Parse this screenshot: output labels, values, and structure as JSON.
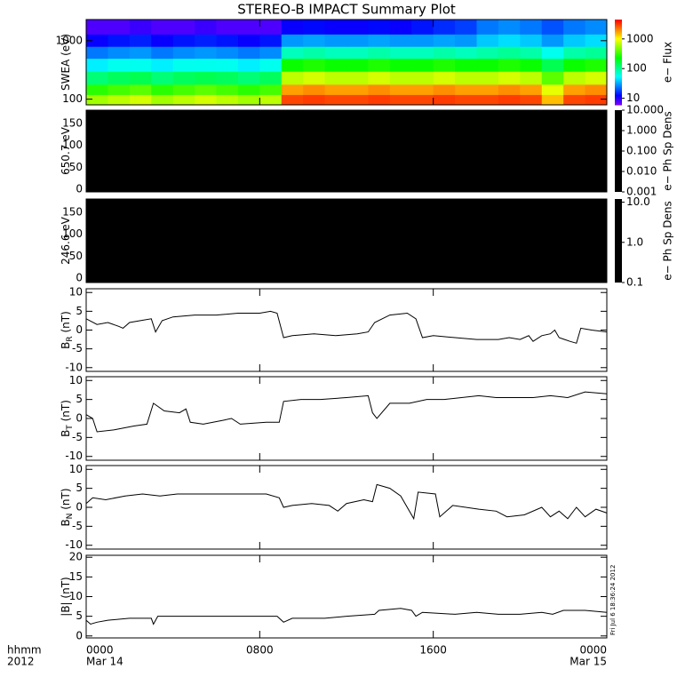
{
  "title": "STEREO-B IMPACT Summary Plot",
  "timestamp": "Fri Jul  6 18:36:24 2012",
  "x_axis": {
    "xlim": [
      0,
      24
    ],
    "xticks": [
      {
        "value": 0,
        "label": "0000"
      },
      {
        "value": 8,
        "label": "0800"
      },
      {
        "value": 16,
        "label": "1600"
      },
      {
        "value": 24,
        "label": "0000"
      }
    ],
    "date_labels": [
      "Mar 14",
      "Mar 15"
    ],
    "corner_labels": [
      "hhmm",
      "2012"
    ]
  },
  "chart_data": [
    {
      "type": "heatmap",
      "ylabel": "SWEA (eV)",
      "log": true,
      "ylim": [
        80,
        2300
      ],
      "yticks": [
        100,
        1000
      ],
      "zlabel": "e− Flux",
      "zlim": [
        6,
        4500
      ],
      "zticks": [
        10,
        100,
        1000
      ],
      "colormap": "rainbow",
      "x_bins": [
        0,
        1,
        2,
        3,
        4,
        5,
        6,
        7,
        8,
        9,
        10,
        11,
        12,
        13,
        14,
        15,
        16,
        17,
        18,
        19,
        20,
        21,
        22,
        23,
        24
      ],
      "y_bins": [
        80,
        120,
        180,
        300,
        500,
        800,
        1300,
        2300
      ],
      "z": [
        [
          600,
          700,
          800,
          600,
          700,
          800,
          700,
          600,
          700,
          3000,
          3200,
          3000,
          3000,
          3200,
          3000,
          3000,
          3200,
          3000,
          3000,
          3200,
          3000,
          1500,
          3000,
          3200
        ],
        [
          300,
          350,
          400,
          300,
          350,
          400,
          350,
          300,
          350,
          1800,
          2000,
          1800,
          1800,
          2000,
          1800,
          1800,
          2000,
          1800,
          1800,
          2000,
          1800,
          900,
          1800,
          2000
        ],
        [
          120,
          140,
          150,
          120,
          140,
          150,
          140,
          120,
          140,
          700,
          800,
          700,
          700,
          800,
          700,
          700,
          800,
          700,
          700,
          800,
          700,
          400,
          700,
          800
        ],
        [
          50,
          60,
          60,
          50,
          60,
          60,
          60,
          50,
          60,
          250,
          280,
          250,
          250,
          280,
          250,
          250,
          280,
          250,
          250,
          280,
          250,
          150,
          250,
          280
        ],
        [
          25,
          28,
          30,
          25,
          28,
          30,
          28,
          25,
          28,
          80,
          90,
          80,
          80,
          90,
          80,
          80,
          90,
          80,
          90,
          100,
          90,
          60,
          90,
          100
        ],
        [
          12,
          14,
          15,
          12,
          14,
          15,
          14,
          12,
          14,
          30,
          32,
          30,
          30,
          32,
          30,
          30,
          32,
          30,
          40,
          45,
          40,
          30,
          40,
          45
        ],
        [
          8,
          8,
          9,
          8,
          8,
          9,
          8,
          8,
          8,
          12,
          13,
          12,
          12,
          13,
          12,
          14,
          16,
          18,
          25,
          28,
          25,
          20,
          25,
          28
        ]
      ]
    },
    {
      "type": "image",
      "ylabel": "650.7 eV",
      "ylim": [
        -6,
        180
      ],
      "yticks": [
        0,
        50,
        100,
        150
      ],
      "fill": "#000000",
      "zlabel": "e− Ph Sp Dens",
      "zlog": true,
      "zlim": [
        0.001,
        10
      ],
      "zticks": [
        {
          "value": 10,
          "label": "10.000"
        },
        {
          "value": 1,
          "label": "1.000"
        },
        {
          "value": 0.1,
          "label": "0.100"
        },
        {
          "value": 0.01,
          "label": "0.010"
        },
        {
          "value": 0.001,
          "label": "0.001"
        }
      ]
    },
    {
      "type": "image",
      "ylabel": "246.6 eV",
      "ylim": [
        -10,
        180
      ],
      "yticks": [
        0,
        50,
        100,
        150
      ],
      "fill": "#000000",
      "zlabel": "e− Ph Sp Dens",
      "zlog": true,
      "zlim": [
        0.1,
        12
      ],
      "zticks": [
        {
          "value": 10,
          "label": "10.0"
        },
        {
          "value": 1,
          "label": "1.0"
        },
        {
          "value": 0.1,
          "label": "0.1"
        }
      ]
    },
    {
      "type": "line",
      "ylabel": "B",
      "ylabel_sub": "R",
      "ylabel_unit": " (nT)",
      "ylim": [
        -11,
        11
      ],
      "yticks": [
        -10,
        -5,
        0,
        5,
        10
      ],
      "color": "#000000",
      "x": [
        0,
        0.5,
        1,
        1.5,
        1.7,
        2,
        2.5,
        3,
        3.2,
        3.5,
        4,
        5,
        6,
        7,
        8,
        8.5,
        8.8,
        9.1,
        9.5,
        10.5,
        11.5,
        12.5,
        13,
        13.3,
        14,
        14.8,
        15.2,
        15.5,
        16,
        17,
        18,
        19,
        19.5,
        20,
        20.4,
        20.6,
        21,
        21.4,
        21.6,
        21.8,
        22.3,
        22.6,
        22.8,
        23.3,
        24
      ],
      "values": [
        3,
        1.5,
        2,
        1,
        0.5,
        2,
        2.5,
        3,
        -0.5,
        2.5,
        3.5,
        4,
        4,
        4.5,
        4.5,
        5,
        4.5,
        -2,
        -1.5,
        -1,
        -1.5,
        -1,
        -0.5,
        2,
        4,
        4.5,
        3,
        -2,
        -1.5,
        -2,
        -2.5,
        -2.5,
        -2,
        -2.5,
        -1.5,
        -3,
        -1.5,
        -1,
        0,
        -2,
        -3,
        -3.5,
        0.5,
        0,
        -0.5
      ]
    },
    {
      "type": "line",
      "ylabel": "B",
      "ylabel_sub": "T",
      "ylabel_unit": " (nT)",
      "ylim": [
        -11,
        11
      ],
      "yticks": [
        -10,
        -5,
        0,
        5,
        10
      ],
      "color": "#000000",
      "x": [
        0,
        0.3,
        0.5,
        1.3,
        2.2,
        2.8,
        3.1,
        3.6,
        4.3,
        4.6,
        4.8,
        5.4,
        6.3,
        6.7,
        7.1,
        8.3,
        8.9,
        9.1,
        9.9,
        10.8,
        12,
        13,
        13.2,
        13.4,
        14,
        14.9,
        15.7,
        16.5,
        18.1,
        18.9,
        20.6,
        21.4,
        22.2,
        23,
        24
      ],
      "values": [
        1,
        0,
        -3.5,
        -3,
        -2,
        -1.5,
        4,
        2,
        1.5,
        2.5,
        -1,
        -1.5,
        -0.5,
        0,
        -1.5,
        -1,
        -1,
        4.5,
        5,
        5,
        5.5,
        6,
        1.5,
        0,
        4,
        4,
        5,
        5,
        6,
        5.5,
        5.5,
        6,
        5.5,
        7,
        6.5
      ]
    },
    {
      "type": "line",
      "ylabel": "B",
      "ylabel_sub": "N",
      "ylabel_unit": " (nT)",
      "ylim": [
        -11,
        11
      ],
      "yticks": [
        -10,
        -5,
        0,
        5,
        10
      ],
      "color": "#000000",
      "x": [
        0,
        0.3,
        0.9,
        1.8,
        2.6,
        3.4,
        4.2,
        5.4,
        6.7,
        8.3,
        8.9,
        9.1,
        9.5,
        10.4,
        11.2,
        11.6,
        12,
        12.8,
        13.2,
        13.4,
        14,
        14.5,
        15.1,
        15.3,
        16.1,
        16.3,
        16.9,
        18.1,
        18.9,
        19.4,
        20.2,
        21,
        21.4,
        21.8,
        22.2,
        22.6,
        23,
        23.5,
        24
      ],
      "values": [
        1,
        2.5,
        2,
        3,
        3.5,
        3,
        3.5,
        3.5,
        3.5,
        3.5,
        2.5,
        0,
        0.5,
        1,
        0.5,
        -1,
        1,
        2,
        1.5,
        6,
        5,
        3,
        -3,
        4,
        3.5,
        -2.5,
        0.5,
        -0.5,
        -1,
        -2.5,
        -2,
        0,
        -2.5,
        -1,
        -3,
        0,
        -2.5,
        -0.5,
        -1.5
      ]
    },
    {
      "type": "line",
      "ylabel": "|B| (nT)",
      "ylim": [
        -0.5,
        20.5
      ],
      "yticks": [
        0,
        5,
        10,
        15,
        20
      ],
      "color": "#000000",
      "x": [
        0,
        0.2,
        0.5,
        1,
        2,
        3,
        3.1,
        3.3,
        5,
        7,
        8.8,
        9.1,
        9.5,
        11,
        12,
        13.3,
        13.5,
        14.5,
        15,
        15.2,
        15.5,
        17,
        18,
        19,
        20,
        21,
        21.5,
        22,
        23,
        24
      ],
      "values": [
        4,
        3,
        3.5,
        4,
        4.5,
        4.5,
        3,
        5,
        5,
        5,
        5,
        3.5,
        4.5,
        4.5,
        5,
        5.5,
        6.5,
        7,
        6.5,
        5,
        6,
        5.5,
        6,
        5.5,
        5.5,
        6,
        5.5,
        6.5,
        6.5,
        6
      ]
    }
  ]
}
